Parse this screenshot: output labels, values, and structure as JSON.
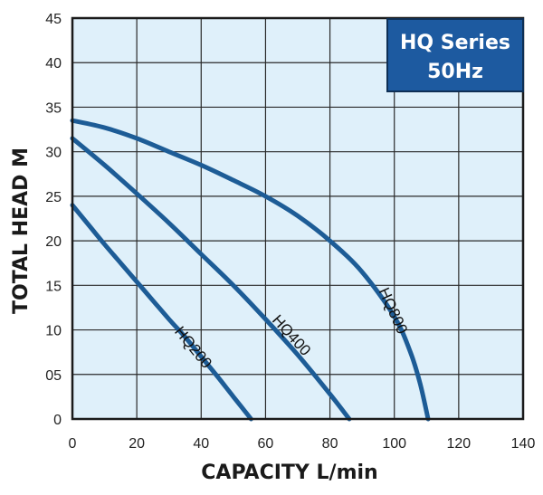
{
  "chart_data": {
    "type": "line",
    "title": "HQ Series\n50Hz",
    "title_lines": [
      "HQ Series",
      "50Hz"
    ],
    "xlabel": "CAPACITY L/min",
    "ylabel": "TOTAL HEAD M",
    "xlim": [
      0,
      140
    ],
    "ylim": [
      0,
      45
    ],
    "x_ticks": [
      0,
      20,
      40,
      60,
      80,
      100,
      120,
      140
    ],
    "x_tick_labels": [
      "0",
      "20",
      "40",
      "60",
      "80",
      "100",
      "120",
      "140"
    ],
    "y_ticks": [
      0,
      5,
      10,
      15,
      20,
      25,
      30,
      35,
      40,
      45
    ],
    "y_tick_labels": [
      "0",
      "05",
      "10",
      "15",
      "20",
      "25",
      "30",
      "35",
      "40",
      "45"
    ],
    "grid": true,
    "legend": "top-right",
    "background_color": "#dff0fa",
    "line_color": "#1d5c96",
    "title_box_color": "#1d5aa0",
    "series": [
      {
        "name": "HQ200",
        "x": [
          0,
          5,
          10,
          15,
          20,
          25,
          30,
          35,
          40,
          45,
          50,
          55.5
        ],
        "y": [
          24,
          21.8,
          19.6,
          17.5,
          15.4,
          13.3,
          11.2,
          9.2,
          7.0,
          4.8,
          2.5,
          0
        ]
      },
      {
        "name": "HQ400",
        "x": [
          0,
          10,
          20,
          30,
          40,
          50,
          60,
          70,
          80,
          86
        ],
        "y": [
          31.5,
          28.5,
          25.3,
          22.0,
          18.5,
          15.0,
          11.2,
          7.2,
          2.8,
          0
        ]
      },
      {
        "name": "HQ800",
        "x": [
          0,
          10,
          20,
          30,
          40,
          50,
          60,
          70,
          80,
          90,
          100,
          105,
          108,
          110.5
        ],
        "y": [
          33.5,
          32.7,
          31.5,
          30.0,
          28.5,
          26.8,
          25.0,
          22.8,
          20.0,
          16.5,
          11.5,
          7.5,
          4.0,
          0
        ]
      }
    ]
  }
}
